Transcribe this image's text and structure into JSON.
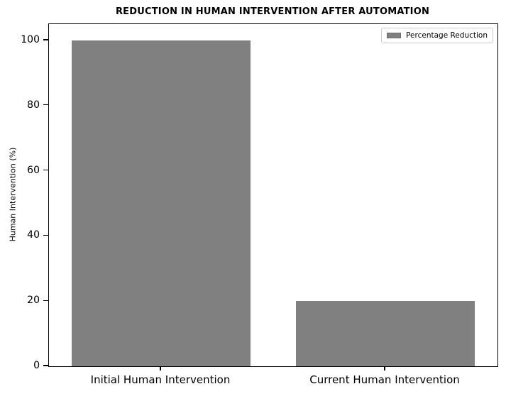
{
  "chart_data": {
    "type": "bar",
    "title": "REDUCTION IN HUMAN INTERVENTION AFTER AUTOMATION",
    "categories": [
      "Initial Human Intervention",
      "Current Human Intervention"
    ],
    "series": [
      {
        "name": "Percentage Reduction",
        "values": [
          100,
          20
        ]
      }
    ],
    "values": [
      100,
      20
    ],
    "xlabel": "",
    "ylabel": "Human Intervention (%)",
    "yticks": [
      0,
      20,
      40,
      60,
      80,
      100
    ],
    "ylim": [
      0,
      105
    ],
    "grid": false,
    "legend_position": "upper right",
    "legend_labels": [
      "Percentage Reduction"
    ],
    "colors": {
      "bar": "#808080",
      "spine": "#000000",
      "text": "#000000",
      "legend_border": "#cccccc"
    }
  }
}
